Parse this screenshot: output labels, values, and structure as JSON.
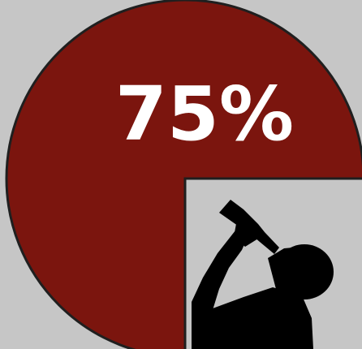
{
  "colors": {
    "background": "#c6c6c6",
    "slice_fill": "#7b150e",
    "slice_stroke": "#1f1f1f",
    "missing_area": "#c6c6c6",
    "silhouette": "#000000",
    "label": "#ffffff"
  },
  "icons": {
    "silhouette": "person-drinking-from-bottle-icon"
  },
  "chart_data": {
    "type": "pie",
    "slices": [
      {
        "value": 75,
        "label": "75%",
        "color": "#7b150e"
      },
      {
        "value": 25,
        "label": "",
        "color": "#c6c6c6"
      }
    ],
    "title": "",
    "legend": "none"
  }
}
